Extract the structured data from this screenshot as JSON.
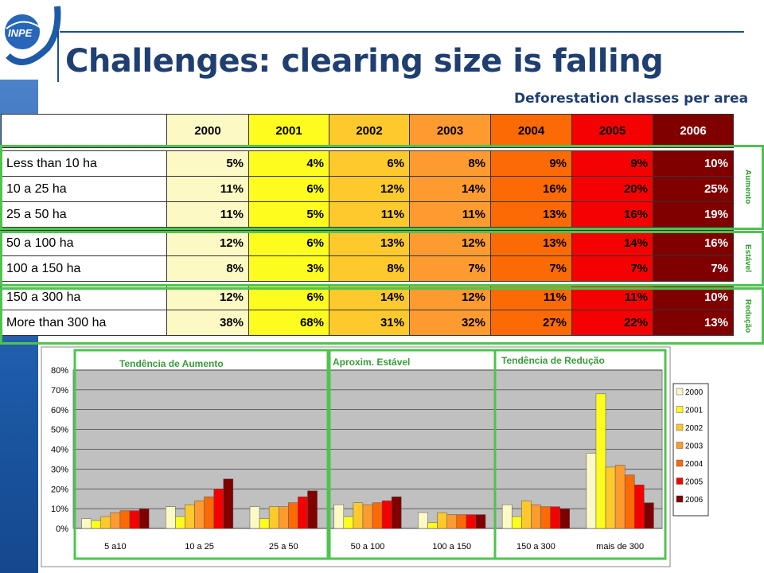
{
  "header": {
    "title": "Challenges: clearing size is falling",
    "subtitle": "Deforestation classes per area",
    "logo_text": "INPE"
  },
  "table": {
    "years": [
      "2000",
      "2001",
      "2002",
      "2003",
      "2004",
      "2005",
      "2006"
    ],
    "rows": [
      {
        "label": "Less than 10 ha",
        "values": [
          "5%",
          "4%",
          "6%",
          "8%",
          "9%",
          "9%",
          "10%"
        ]
      },
      {
        "label": "10 a 25 ha",
        "values": [
          "11%",
          "6%",
          "12%",
          "14%",
          "16%",
          "20%",
          "25%"
        ]
      },
      {
        "label": "25 a 50 ha",
        "values": [
          "11%",
          "5%",
          "11%",
          "11%",
          "13%",
          "16%",
          "19%"
        ]
      },
      {
        "label": "50 a 100 ha",
        "values": [
          "12%",
          "6%",
          "13%",
          "12%",
          "13%",
          "14%",
          "16%"
        ]
      },
      {
        "label": "100 a 150 ha",
        "values": [
          "8%",
          "3%",
          "8%",
          "7%",
          "7%",
          "7%",
          "7%"
        ]
      },
      {
        "label": "150 a 300 ha",
        "values": [
          "12%",
          "6%",
          "14%",
          "12%",
          "11%",
          "11%",
          "10%"
        ]
      },
      {
        "label": "More than 300 ha",
        "values": [
          "38%",
          "68%",
          "31%",
          "32%",
          "27%",
          "22%",
          "13%"
        ]
      }
    ],
    "group_labels": [
      "Aumento",
      "Estável",
      "Redução"
    ]
  },
  "colors": {
    "series": [
      "#fdf9c4",
      "#fefc1e",
      "#fdc92c",
      "#fd9b31",
      "#fc6a06",
      "#f40101",
      "#800000"
    ],
    "group_box": "#4fc34f",
    "title": "#1f3f70"
  },
  "chart_data": {
    "type": "bar",
    "categories": [
      "5 a10",
      "10 a 25",
      "25 a 50",
      "50 a 100",
      "100 a 150",
      "150 a 300",
      "mais de 300"
    ],
    "series": [
      {
        "name": "2000",
        "values": [
          5,
          11,
          11,
          12,
          8,
          12,
          38
        ]
      },
      {
        "name": "2001",
        "values": [
          4,
          6,
          5,
          6,
          3,
          6,
          68
        ]
      },
      {
        "name": "2002",
        "values": [
          6,
          12,
          11,
          13,
          8,
          14,
          31
        ]
      },
      {
        "name": "2003",
        "values": [
          8,
          14,
          11,
          12,
          7,
          12,
          32
        ]
      },
      {
        "name": "2004",
        "values": [
          9,
          16,
          13,
          13,
          7,
          11,
          27
        ]
      },
      {
        "name": "2005",
        "values": [
          9,
          20,
          16,
          14,
          7,
          11,
          22
        ]
      },
      {
        "name": "2006",
        "values": [
          10,
          25,
          19,
          16,
          7,
          10,
          13
        ]
      }
    ],
    "ylim": [
      0,
      80
    ],
    "yticks": [
      "0%",
      "10%",
      "20%",
      "30%",
      "40%",
      "50%",
      "60%",
      "70%",
      "80%"
    ],
    "grid": true,
    "legend": "right",
    "annotations": [
      "Tendência de Aumento",
      "Aproxim. Estável",
      "Tendência de Redução"
    ]
  }
}
